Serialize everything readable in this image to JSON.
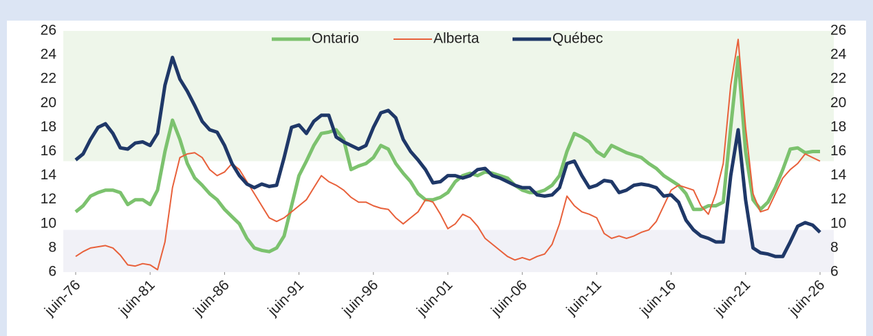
{
  "chart_data": {
    "type": "line",
    "legend": "upper center",
    "ylim": [
      6,
      26
    ],
    "yticks": [
      6,
      8,
      10,
      12,
      14,
      16,
      18,
      20,
      22,
      24,
      26
    ],
    "y2lim": [
      6,
      26
    ],
    "y2ticks": [
      6,
      8,
      10,
      12,
      14,
      16,
      18,
      20,
      22,
      24,
      26
    ],
    "xlim": [
      "1976-06",
      "2026-06"
    ],
    "xticks": [
      {
        "value": "1976-06",
        "label": "juin-76"
      },
      {
        "value": "1981-06",
        "label": "juin-81"
      },
      {
        "value": "1986-06",
        "label": "juin-86"
      },
      {
        "value": "1991-06",
        "label": "juin-91"
      },
      {
        "value": "1996-06",
        "label": "juin-96"
      },
      {
        "value": "2001-06",
        "label": "juin-01"
      },
      {
        "value": "2006-06",
        "label": "juin-06"
      },
      {
        "value": "2011-06",
        "label": "juin-11"
      },
      {
        "value": "2016-06",
        "label": "juin-16"
      },
      {
        "value": "2021-06",
        "label": "juin-21"
      },
      {
        "value": "2026-06",
        "label": "juin-26"
      }
    ],
    "bands": [
      {
        "from": 15.2,
        "to": 26,
        "color": "#eef6ea"
      },
      {
        "from": 6,
        "to": 9.5,
        "color": "#f1f1f7"
      }
    ],
    "x": [
      "1976-06",
      "1976-12",
      "1977-06",
      "1977-12",
      "1978-06",
      "1978-12",
      "1979-06",
      "1979-12",
      "1980-06",
      "1980-12",
      "1981-06",
      "1981-12",
      "1982-06",
      "1982-12",
      "1983-06",
      "1983-12",
      "1984-06",
      "1984-12",
      "1985-06",
      "1985-12",
      "1986-06",
      "1986-12",
      "1987-06",
      "1987-12",
      "1988-06",
      "1988-12",
      "1989-06",
      "1989-12",
      "1990-06",
      "1990-12",
      "1991-06",
      "1991-12",
      "1992-06",
      "1992-12",
      "1993-06",
      "1993-12",
      "1994-06",
      "1994-12",
      "1995-06",
      "1995-12",
      "1996-06",
      "1996-12",
      "1997-06",
      "1997-12",
      "1998-06",
      "1998-12",
      "1999-06",
      "1999-12",
      "2000-06",
      "2000-12",
      "2001-06",
      "2001-12",
      "2002-06",
      "2002-12",
      "2003-06",
      "2003-12",
      "2004-06",
      "2004-12",
      "2005-06",
      "2005-12",
      "2006-06",
      "2006-12",
      "2007-06",
      "2007-12",
      "2008-06",
      "2008-12",
      "2009-06",
      "2009-12",
      "2010-06",
      "2010-12",
      "2011-06",
      "2011-12",
      "2012-06",
      "2012-12",
      "2013-06",
      "2013-12",
      "2014-06",
      "2014-12",
      "2015-06",
      "2015-12",
      "2016-06",
      "2016-12",
      "2017-06",
      "2017-12",
      "2018-06",
      "2018-12",
      "2019-06",
      "2019-12",
      "2020-06",
      "2020-12",
      "2021-06",
      "2021-12",
      "2022-06",
      "2022-12",
      "2023-06",
      "2023-12",
      "2024-06",
      "2024-12",
      "2025-06",
      "2025-12",
      "2026-06"
    ],
    "series": [
      {
        "name": "Ontario",
        "color": "#7cc26e",
        "width": 5,
        "values": [
          11.0,
          11.5,
          12.3,
          12.6,
          12.8,
          12.8,
          12.6,
          11.6,
          12.0,
          12.0,
          11.6,
          12.8,
          16.0,
          18.6,
          17.0,
          15.0,
          13.8,
          13.2,
          12.5,
          12.0,
          11.2,
          10.6,
          10.0,
          8.8,
          8.0,
          7.8,
          7.7,
          8.0,
          9.0,
          11.5,
          14.0,
          15.2,
          16.5,
          17.5,
          17.6,
          17.8,
          17.0,
          14.5,
          14.8,
          15.0,
          15.5,
          16.5,
          16.2,
          15.0,
          14.2,
          13.5,
          12.5,
          12.0,
          12.0,
          12.2,
          12.6,
          13.5,
          14.0,
          14.2,
          14.0,
          14.3,
          14.2,
          14.0,
          13.8,
          13.2,
          12.8,
          12.6,
          12.6,
          12.8,
          13.2,
          14.0,
          16.0,
          17.5,
          17.2,
          16.8,
          16.0,
          15.6,
          16.5,
          16.2,
          15.9,
          15.7,
          15.5,
          15.0,
          14.6,
          14.0,
          13.6,
          13.2,
          12.5,
          11.2,
          11.2,
          11.5,
          11.5,
          11.8,
          18.0,
          23.8,
          16.0,
          12.0,
          11.2,
          11.8,
          13.0,
          14.5,
          16.2,
          16.3,
          15.9,
          16.0,
          16.0
        ]
      },
      {
        "name": "Alberta",
        "color": "#e8603a",
        "width": 2,
        "values": [
          7.3,
          7.7,
          8.0,
          8.1,
          8.2,
          8.0,
          7.4,
          6.6,
          6.5,
          6.7,
          6.6,
          6.2,
          8.5,
          13.0,
          15.5,
          15.8,
          15.9,
          15.5,
          14.5,
          14.0,
          14.3,
          15.0,
          14.5,
          13.5,
          12.5,
          11.5,
          10.5,
          10.2,
          10.5,
          11.0,
          11.5,
          12.0,
          13.0,
          14.0,
          13.5,
          13.2,
          12.8,
          12.2,
          11.8,
          11.8,
          11.5,
          11.3,
          11.2,
          10.5,
          10.0,
          10.5,
          11.0,
          12.0,
          11.8,
          10.8,
          9.6,
          10.0,
          10.8,
          10.5,
          9.8,
          8.8,
          8.3,
          7.8,
          7.3,
          7.0,
          7.2,
          7.0,
          7.3,
          7.5,
          8.3,
          10.0,
          12.3,
          11.5,
          11.0,
          10.8,
          10.5,
          9.2,
          8.8,
          9.0,
          8.8,
          9.0,
          9.3,
          9.5,
          10.2,
          11.5,
          12.8,
          13.2,
          13.0,
          12.8,
          11.5,
          10.8,
          12.5,
          15.0,
          21.5,
          25.3,
          18.0,
          12.5,
          11.0,
          11.2,
          12.5,
          13.8,
          14.5,
          15.0,
          15.8,
          15.5,
          15.2
        ]
      },
      {
        "name": "Québec",
        "color": "#1f3868",
        "width": 5,
        "values": [
          15.3,
          15.8,
          17.0,
          18.0,
          18.3,
          17.5,
          16.3,
          16.2,
          16.7,
          16.8,
          16.5,
          17.5,
          21.5,
          23.8,
          22.0,
          21.0,
          19.8,
          18.5,
          17.8,
          17.6,
          16.5,
          15.0,
          14.0,
          13.3,
          13.0,
          13.3,
          13.1,
          13.2,
          15.5,
          18.0,
          18.2,
          17.5,
          18.5,
          19.0,
          19.0,
          17.2,
          16.8,
          16.5,
          16.2,
          16.5,
          18.0,
          19.2,
          19.4,
          18.8,
          17.0,
          16.0,
          15.3,
          14.5,
          13.4,
          13.5,
          14.0,
          14.0,
          13.8,
          14.0,
          14.5,
          14.6,
          14.0,
          13.8,
          13.5,
          13.2,
          13.0,
          13.0,
          12.4,
          12.3,
          12.4,
          13.0,
          15.0,
          15.2,
          14.0,
          13.0,
          13.2,
          13.6,
          13.5,
          12.6,
          12.8,
          13.2,
          13.3,
          13.2,
          13.0,
          12.3,
          12.4,
          11.8,
          10.3,
          9.5,
          9.0,
          8.8,
          8.5,
          8.5,
          14.0,
          17.8,
          12.0,
          8.0,
          7.6,
          7.5,
          7.3,
          7.3,
          8.5,
          9.8,
          10.1,
          9.9,
          9.3
        ]
      }
    ]
  }
}
